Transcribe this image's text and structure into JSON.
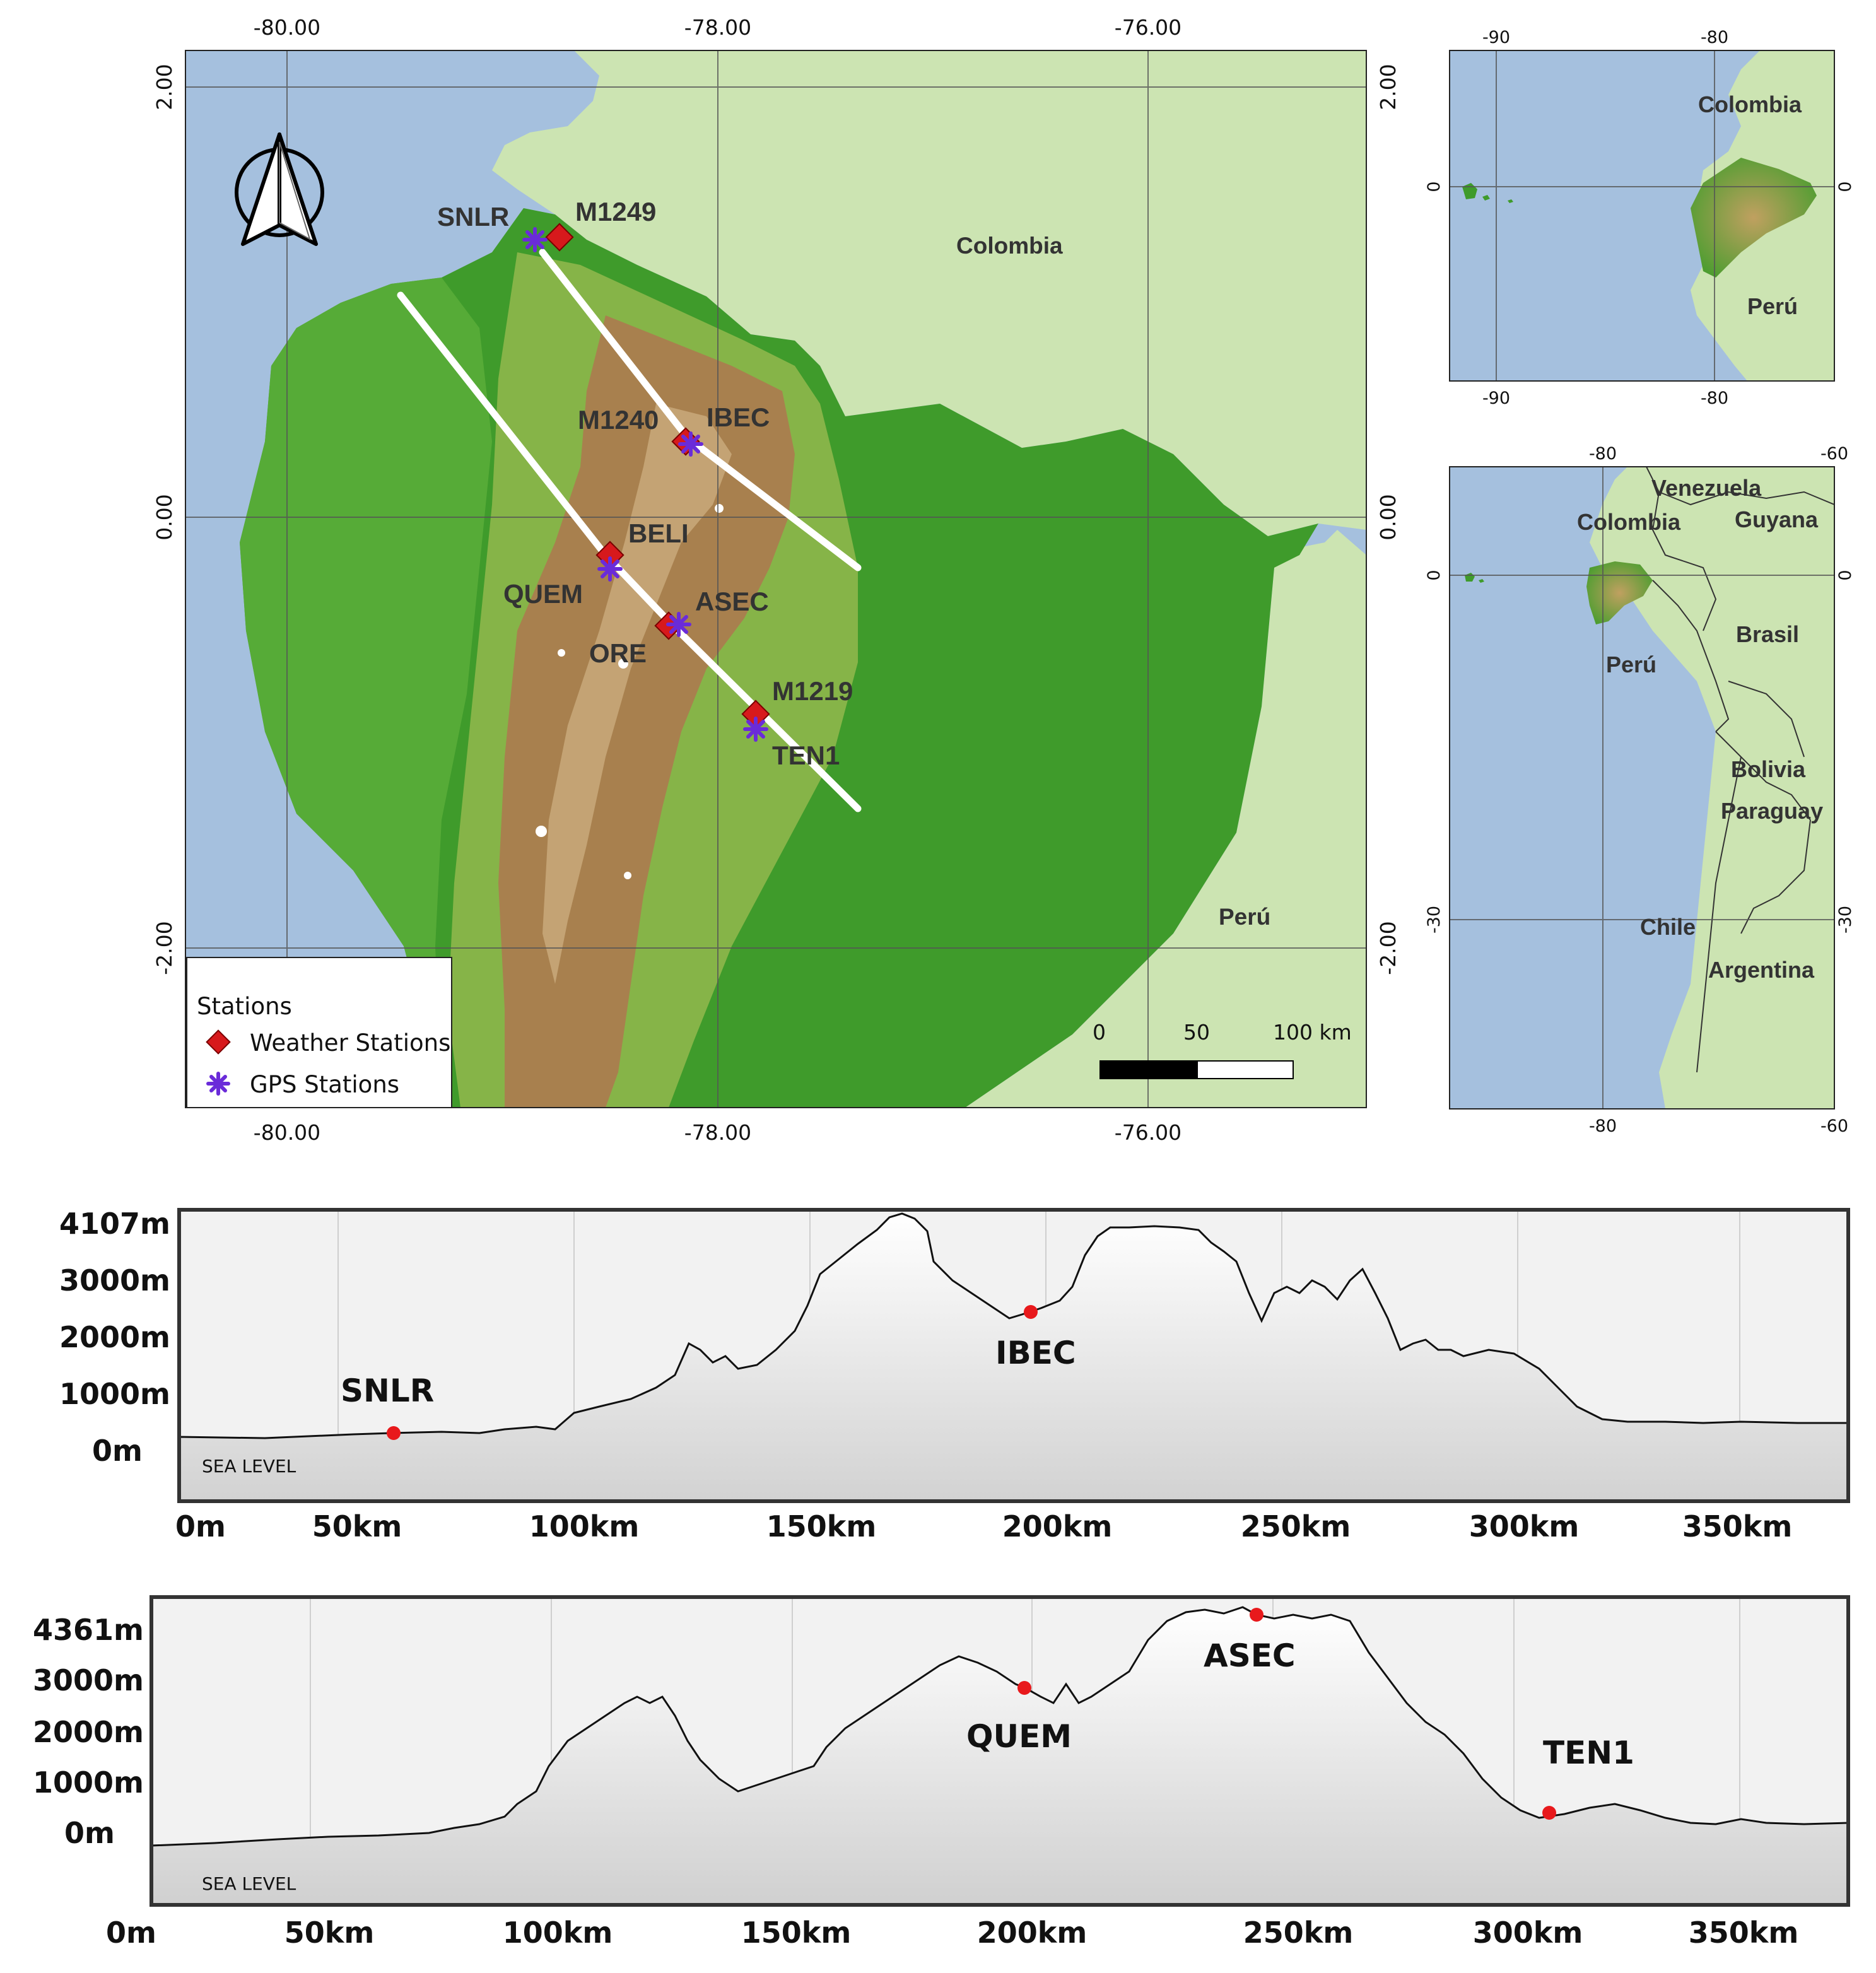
{
  "main_map": {
    "top_lon_labels": [
      "-80.00",
      "-78.00",
      "-76.00"
    ],
    "bottom_lon_labels": [
      "-80.00",
      "-78.00",
      "-76.00"
    ],
    "left_lat_labels": [
      "2.00",
      "0.00",
      "-2.00"
    ],
    "right_lat_labels": [
      "2.00",
      "0.00",
      "-2.00"
    ],
    "countries": {
      "colombia": "Colombia",
      "peru": "Perú"
    },
    "stations": {
      "snlr": "SNLR",
      "m1249": "M1249",
      "m1240": "M1240",
      "ibec": "IBEC",
      "beli": "BELI",
      "quem": "QUEM",
      "asec": "ASEC",
      "ore": "ORE",
      "m1219": "M1219",
      "ten1": "TEN1"
    },
    "legend": {
      "title": "Stations",
      "weather": "Weather Stations",
      "gps": "GPS Stations"
    },
    "scale": {
      "l0": "0",
      "l1": "50",
      "l2": "100 km"
    },
    "colors": {
      "ocean": "#a5c0de",
      "neighbor": "#cce4b2",
      "lowland": "#3f9b2b",
      "highland": "#a8804e",
      "weather_marker": "#d7191c",
      "gps_marker": "#6a2bd9"
    }
  },
  "inset_top": {
    "top_labels": [
      "-90",
      "-80"
    ],
    "bottom_labels": [
      "-90",
      "-80"
    ],
    "left_label": "0",
    "right_label": "0",
    "countries": {
      "colombia": "Colombia",
      "peru": "Perú"
    }
  },
  "inset_bottom": {
    "top_labels": [
      "-80",
      "-60"
    ],
    "bottom_labels": [
      "-80",
      "-60"
    ],
    "left_labels": [
      "0",
      "-30"
    ],
    "right_labels": [
      "0",
      "-30"
    ],
    "countries": {
      "venezuela": "Venezuela",
      "colombia": "Colombia",
      "guyana": "Guyana",
      "brasil": "Brasil",
      "peru": "Perú",
      "bolivia": "Bolivia",
      "paraguay": "Paraguay",
      "chile": "Chile",
      "argentina": "Argentina"
    }
  },
  "profile1": {
    "y_labels": [
      "4107m",
      "3000m",
      "2000m",
      "1000m",
      "0m"
    ],
    "x_labels": [
      "0m",
      "50km",
      "100km",
      "150km",
      "200km",
      "250km",
      "300km",
      "350km"
    ],
    "sea_level": "SEA LEVEL",
    "stations": {
      "snlr": "SNLR",
      "ibec": "IBEC"
    }
  },
  "profile2": {
    "y_labels": [
      "4361m",
      "3000m",
      "2000m",
      "1000m",
      "0m"
    ],
    "x_labels": [
      "0m",
      "50km",
      "100km",
      "150km",
      "200km",
      "250km",
      "300km",
      "350km"
    ],
    "sea_level": "SEA LEVEL",
    "stations": {
      "quem": "QUEM",
      "asec": "ASEC",
      "ten1": "TEN1"
    }
  }
}
